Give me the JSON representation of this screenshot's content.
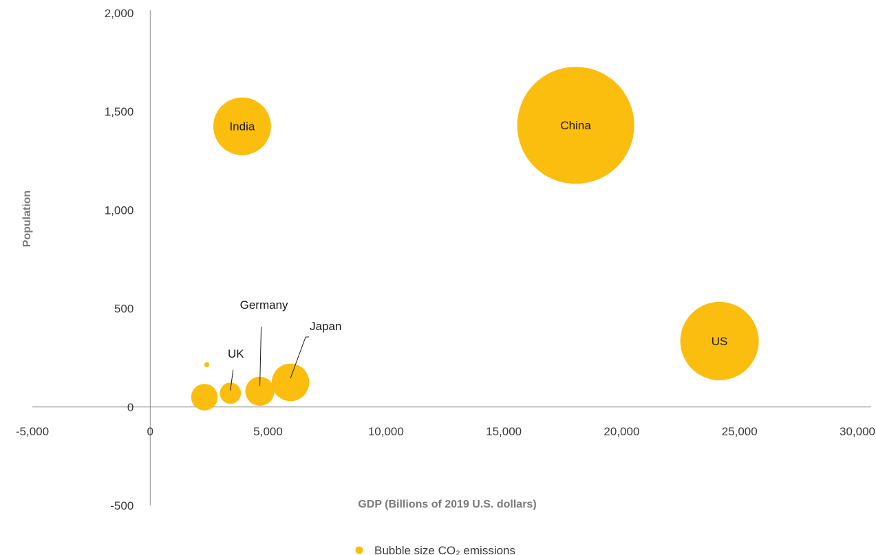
{
  "chart_data": {
    "type": "scatter",
    "title": "",
    "xlabel": "GDP (Billions of 2019 U.S. dollars)",
    "ylabel": "Population",
    "xlim": [
      -5000,
      30000
    ],
    "ylim": [
      -500,
      2000
    ],
    "x_ticks": [
      -5000,
      0,
      5000,
      10000,
      15000,
      20000,
      25000,
      30000
    ],
    "x_tick_labels": [
      "-5,000",
      "0",
      "5,000",
      "10,000",
      "15,000",
      "20,000",
      "25,000",
      "30,000"
    ],
    "y_ticks": [
      -500,
      0,
      500,
      1000,
      1500,
      2000
    ],
    "y_tick_labels": [
      "-500",
      "0",
      "500",
      "1,000",
      "1,500",
      "2,000"
    ],
    "grid": false,
    "legend": {
      "position": "bottom",
      "label": "Bubble size CO₂ emissions"
    },
    "bubble_color": "#fbbd0e",
    "size_meaning": "CO₂ emissions",
    "points": [
      {
        "label": "China",
        "x": 18050,
        "y": 1430,
        "size": 10.7
      },
      {
        "label": "US",
        "x": 24150,
        "y": 335,
        "size": 4.8
      },
      {
        "label": "India",
        "x": 3900,
        "y": 1425,
        "size": 2.6
      },
      {
        "label": "Japan",
        "x": 5950,
        "y": 125,
        "size": 1.1
      },
      {
        "label": "Germany",
        "x": 4650,
        "y": 80,
        "size": 0.66
      },
      {
        "label": "UK",
        "x": 3400,
        "y": 70,
        "size": 0.35
      },
      {
        "label": "",
        "x": 2300,
        "y": 50,
        "size": 0.55
      },
      {
        "label": "",
        "x": 2400,
        "y": 215,
        "size": 0.02
      }
    ]
  }
}
